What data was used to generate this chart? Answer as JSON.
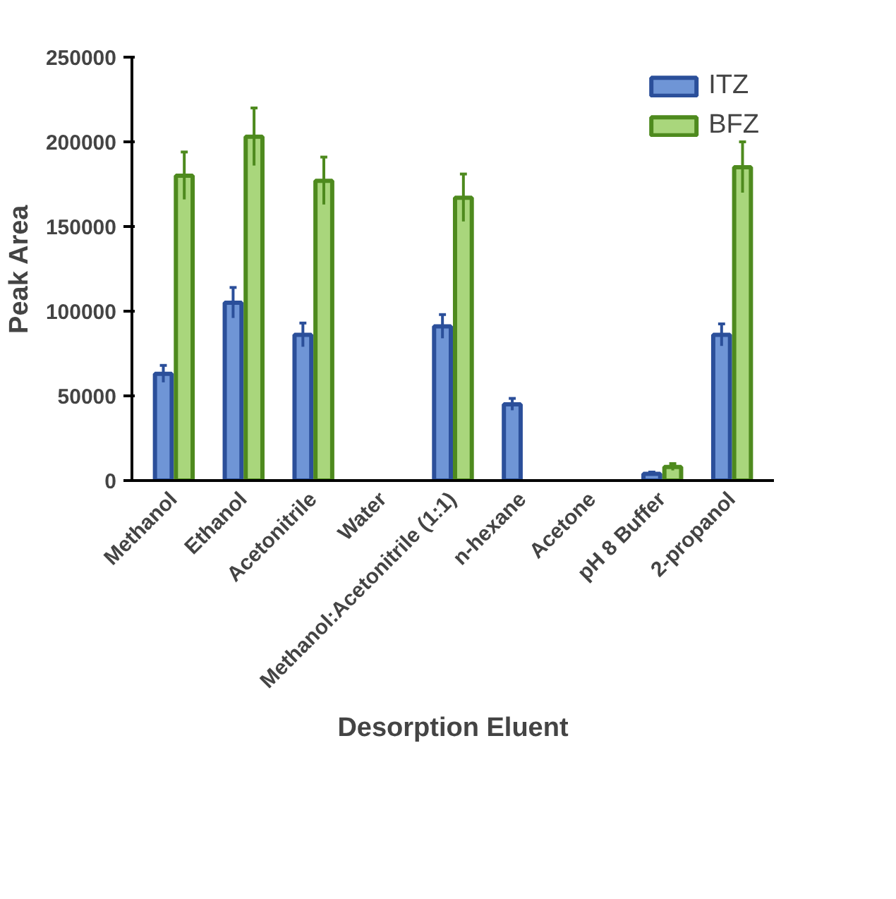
{
  "chart_data": {
    "type": "bar",
    "xlabel": "Desorption Eluent",
    "ylabel": "Peak Area",
    "categories": [
      "Methanol",
      "Ethanol",
      "Acetonitrile",
      "Water",
      "Methanol:Acetonitrile (1:1)",
      "n-hexane",
      "Acetone",
      "pH 8 Buffer",
      "2-propanol"
    ],
    "series": [
      {
        "name": "ITZ",
        "color": "#6f95d6",
        "values": [
          63000,
          105000,
          86000,
          null,
          91000,
          45000,
          null,
          4000,
          86000
        ],
        "errors": [
          5000,
          9000,
          7000,
          null,
          7000,
          3500,
          null,
          1000,
          6500
        ]
      },
      {
        "name": "BFZ",
        "color": "#a9d67c",
        "values": [
          180000,
          203000,
          177000,
          null,
          167000,
          null,
          null,
          8000,
          185000
        ],
        "errors": [
          14000,
          17000,
          14000,
          null,
          14000,
          null,
          null,
          2000,
          15000
        ]
      }
    ],
    "ylim": [
      0,
      250000
    ],
    "yticks": [
      0,
      50000,
      100000,
      150000,
      200000,
      250000
    ],
    "grid": false,
    "legend": "top right"
  }
}
